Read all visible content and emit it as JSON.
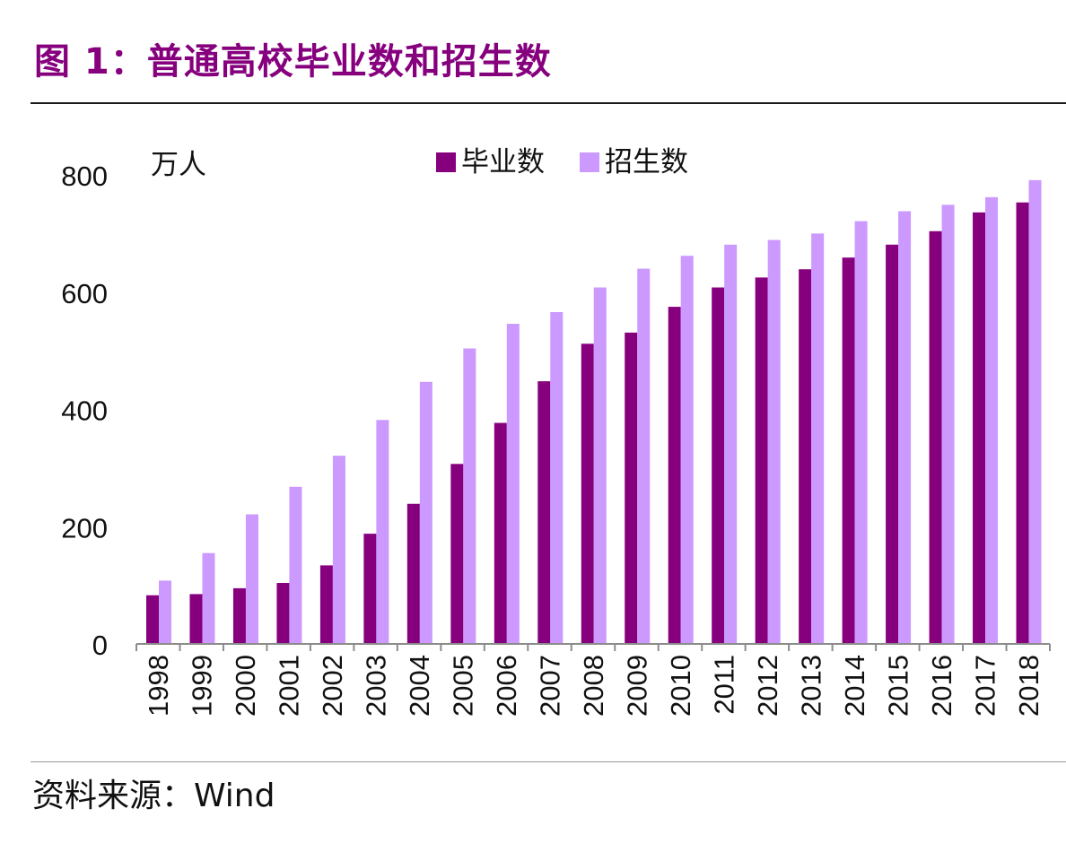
{
  "title": "图 1：普通高校毕业数和招生数",
  "source": "资料来源：Wind",
  "colors": {
    "title": "#86007E",
    "graduates": "#86007E",
    "enrollment": "#CC99FF"
  },
  "chart_data": {
    "type": "bar",
    "unit_label": "万人",
    "categories": [
      "1998",
      "1999",
      "2000",
      "2001",
      "2002",
      "2003",
      "2004",
      "2005",
      "2006",
      "2007",
      "2008",
      "2009",
      "2010",
      "2011",
      "2012",
      "2013",
      "2014",
      "2015",
      "2016",
      "2017",
      "2018"
    ],
    "series": [
      {
        "name": "毕业数",
        "color": "#86007E",
        "values": [
          83,
          85,
          95,
          104,
          134,
          188,
          239,
          307,
          377,
          448,
          512,
          531,
          575,
          608,
          625,
          639,
          659,
          681,
          704,
          736,
          753
        ]
      },
      {
        "name": "招生数",
        "color": "#CC99FF",
        "values": [
          108,
          155,
          221,
          268,
          321,
          382,
          447,
          504,
          546,
          566,
          608,
          640,
          662,
          681,
          689,
          700,
          721,
          738,
          749,
          762,
          791
        ]
      }
    ],
    "ylim": [
      0,
      800
    ],
    "yticks": [
      0,
      200,
      400,
      600,
      800
    ],
    "legend": "top-center",
    "grid": false
  }
}
